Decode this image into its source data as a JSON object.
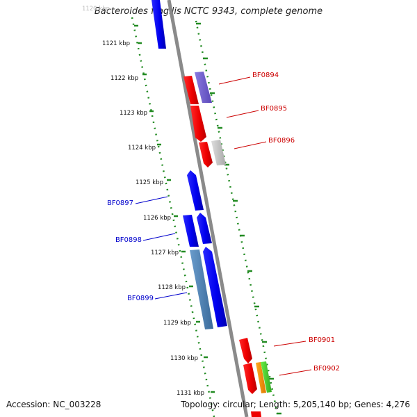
{
  "title": "Bacteroides fragilis NCTC 9343, complete genome",
  "accession": "Accession: NC_003228",
  "summary": "Topology: circular; Length: 5,205,140 bp; Genes: 4,276",
  "ruler": {
    "top_partial_label": "1120 kbp",
    "labels": [
      "1121 kbp",
      "1122 kbp",
      "1123 kbp",
      "1124 kbp",
      "1125 kbp",
      "1126 kbp",
      "1127 kbp",
      "1128 kbp",
      "1129 kbp",
      "1130 kbp",
      "1131 kbp"
    ]
  },
  "colors": {
    "forward_label": "#cc0000",
    "reverse_label": "#0000cc",
    "ruler_ticks": "#228b22",
    "backbone": "#888888"
  },
  "genes": [
    {
      "label": "BF0894",
      "color": "#cc0000"
    },
    {
      "label": "BF0895",
      "color": "#cc0000"
    },
    {
      "label": "BF0896",
      "color": "#cc0000"
    },
    {
      "label": "BF0897",
      "color": "#0000cc"
    },
    {
      "label": "BF0898",
      "color": "#0000cc"
    },
    {
      "label": "BF0899",
      "color": "#0000cc"
    },
    {
      "label": "BF0901",
      "color": "#cc0000"
    },
    {
      "label": "BF0902",
      "color": "#cc0000"
    }
  ]
}
